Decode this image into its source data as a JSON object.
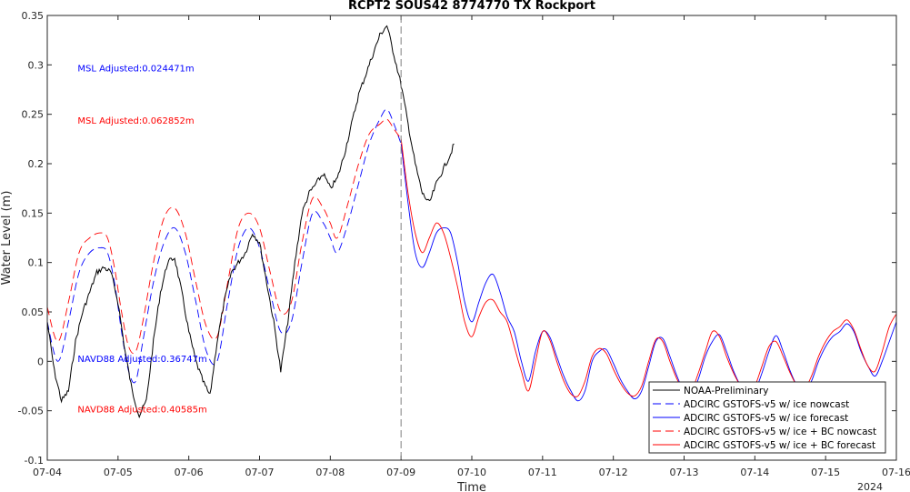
{
  "chart_data": {
    "type": "line",
    "title": "RCPT2 SOUS42 8774770 TX Rockport",
    "xlabel": "Time",
    "ylabel": "Water Level (m)",
    "year_label": "2024",
    "x_ticks": [
      "07-04",
      "07-05",
      "07-06",
      "07-07",
      "07-08",
      "07-09",
      "07-10",
      "07-11",
      "07-12",
      "07-13",
      "07-14",
      "07-15",
      "07-16"
    ],
    "y_ticks": [
      "-0.1",
      "-0.05",
      "0",
      "0.05",
      "0.1",
      "0.15",
      "0.2",
      "0.25",
      "0.3",
      "0.35"
    ],
    "xlim_days": [
      0,
      12
    ],
    "ylim": [
      -0.1,
      0.35
    ],
    "nowcast_forecast_divider_day": 5,
    "annotations": [
      {
        "text": "MSL Adjusted:0.024471m",
        "color": "#0000ff",
        "x_day": 0.3,
        "y": 0.297
      },
      {
        "text": "MSL Adjusted:0.062852m",
        "color": "#ff0000",
        "x_day": 0.3,
        "y": 0.244
      },
      {
        "text": "NAVD88 Adjusted:0.36747m",
        "color": "#0000ff",
        "x_day": 0.3,
        "y": 0.003
      },
      {
        "text": "NAVD88 Adjusted:0.40585m",
        "color": "#ff0000",
        "x_day": 0.3,
        "y": -0.048
      }
    ],
    "legend": {
      "placement": "bottom-right",
      "entries": [
        {
          "label": "NOAA-Preliminary",
          "color": "#000000",
          "dash": "solid"
        },
        {
          "label": "ADCIRC GSTOFS-v5 w/ ice nowcast",
          "color": "#0000ff",
          "dash": "dashed"
        },
        {
          "label": "ADCIRC GSTOFS-v5 w/ ice forecast",
          "color": "#0000ff",
          "dash": "solid"
        },
        {
          "label": "ADCIRC GSTOFS-v5 w/ ice + BC nowcast",
          "color": "#ff0000",
          "dash": "dashed"
        },
        {
          "label": "ADCIRC GSTOFS-v5 w/ ice + BC forecast",
          "color": "#ff0000",
          "dash": "solid"
        }
      ]
    },
    "series": [
      {
        "name": "NOAA-Preliminary",
        "color": "#000000",
        "dash": "solid",
        "noisy": true,
        "x": [
          0,
          0.1,
          0.2,
          0.3,
          0.4,
          0.5,
          0.6,
          0.7,
          0.8,
          0.9,
          1.0,
          1.1,
          1.2,
          1.3,
          1.4,
          1.5,
          1.6,
          1.7,
          1.8,
          1.9,
          2.0,
          2.1,
          2.2,
          2.3,
          2.4,
          2.5,
          2.6,
          2.7,
          2.8,
          2.9,
          3.0,
          3.1,
          3.2,
          3.3,
          3.4,
          3.5,
          3.6,
          3.7,
          3.8,
          3.9,
          4.0,
          4.1,
          4.2,
          4.3,
          4.4,
          4.5,
          4.6,
          4.7,
          4.8,
          4.9,
          5.0,
          5.1,
          5.2,
          5.3,
          5.4,
          5.5,
          5.6,
          5.7,
          5.75
        ],
        "y": [
          0.04,
          -0.01,
          -0.04,
          -0.03,
          0.02,
          0.05,
          0.07,
          0.09,
          0.095,
          0.09,
          0.06,
          0.01,
          -0.03,
          -0.055,
          -0.04,
          0.02,
          0.07,
          0.1,
          0.105,
          0.07,
          0.03,
          0.0,
          -0.02,
          -0.035,
          0.02,
          0.06,
          0.09,
          0.1,
          0.11,
          0.13,
          0.12,
          0.08,
          0.04,
          -0.01,
          0.04,
          0.1,
          0.15,
          0.17,
          0.18,
          0.19,
          0.175,
          0.185,
          0.21,
          0.24,
          0.27,
          0.29,
          0.31,
          0.33,
          0.34,
          0.31,
          0.28,
          0.24,
          0.2,
          0.17,
          0.16,
          0.18,
          0.195,
          0.21,
          0.22
        ]
      },
      {
        "name": "ADCIRC GSTOFS-v5 w/ ice nowcast",
        "color": "#0000ff",
        "dash": "dashed",
        "x": [
          0,
          0.15,
          0.3,
          0.45,
          0.6,
          0.75,
          0.85,
          0.95,
          1.05,
          1.15,
          1.25,
          1.35,
          1.5,
          1.65,
          1.8,
          1.95,
          2.1,
          2.25,
          2.4,
          2.55,
          2.7,
          2.85,
          3.0,
          3.15,
          3.3,
          3.45,
          3.6,
          3.75,
          3.9,
          4.0,
          4.1,
          4.25,
          4.4,
          4.55,
          4.7,
          4.8,
          4.9,
          5.0
        ],
        "y": [
          0.04,
          0.0,
          0.04,
          0.09,
          0.11,
          0.115,
          0.11,
          0.08,
          0.03,
          -0.01,
          -0.02,
          0.02,
          0.08,
          0.12,
          0.135,
          0.11,
          0.06,
          0.01,
          0.0,
          0.06,
          0.115,
          0.135,
          0.115,
          0.07,
          0.03,
          0.04,
          0.1,
          0.15,
          0.14,
          0.125,
          0.11,
          0.14,
          0.18,
          0.22,
          0.245,
          0.255,
          0.24,
          0.22
        ]
      },
      {
        "name": "ADCIRC GSTOFS-v5 w/ ice forecast",
        "color": "#0000ff",
        "dash": "solid",
        "x": [
          5.0,
          5.1,
          5.2,
          5.3,
          5.4,
          5.5,
          5.6,
          5.7,
          5.8,
          5.9,
          6.0,
          6.1,
          6.2,
          6.3,
          6.4,
          6.5,
          6.6,
          6.7,
          6.8,
          6.9,
          7.0,
          7.1,
          7.2,
          7.3,
          7.4,
          7.5,
          7.6,
          7.7,
          7.8,
          7.9,
          8.0,
          8.1,
          8.2,
          8.3,
          8.4,
          8.5,
          8.6,
          8.7,
          8.8,
          8.9,
          9.0,
          9.1,
          9.2,
          9.3,
          9.4,
          9.5,
          9.6,
          9.7,
          9.8,
          9.9,
          10.0,
          10.1,
          10.2,
          10.3,
          10.4,
          10.5,
          10.6,
          10.7,
          10.8,
          10.9,
          11.0,
          11.1,
          11.2,
          11.3,
          11.4,
          11.5,
          11.6,
          11.7,
          11.8,
          11.9,
          12.0
        ],
        "y": [
          0.22,
          0.16,
          0.11,
          0.095,
          0.11,
          0.13,
          0.135,
          0.13,
          0.1,
          0.06,
          0.04,
          0.06,
          0.08,
          0.088,
          0.07,
          0.045,
          0.03,
          0.0,
          -0.02,
          0.01,
          0.03,
          0.025,
          0.005,
          -0.015,
          -0.03,
          -0.04,
          -0.03,
          0.0,
          0.01,
          0.012,
          -0.002,
          -0.018,
          -0.03,
          -0.038,
          -0.03,
          -0.005,
          0.02,
          0.023,
          0.005,
          -0.015,
          -0.03,
          -0.033,
          -0.018,
          0.005,
          0.02,
          0.027,
          0.01,
          -0.01,
          -0.025,
          -0.035,
          -0.03,
          -0.012,
          0.01,
          0.026,
          0.01,
          -0.01,
          -0.025,
          -0.03,
          -0.02,
          0.0,
          0.015,
          0.025,
          0.03,
          0.038,
          0.03,
          0.01,
          -0.005,
          -0.015,
          0.0,
          0.02,
          0.04
        ]
      },
      {
        "name": "ADCIRC GSTOFS-v5 w/ ice + BC nowcast",
        "color": "#ff0000",
        "dash": "dashed",
        "x": [
          0,
          0.15,
          0.3,
          0.45,
          0.6,
          0.75,
          0.85,
          0.95,
          1.05,
          1.15,
          1.25,
          1.35,
          1.5,
          1.65,
          1.8,
          1.95,
          2.1,
          2.25,
          2.4,
          2.55,
          2.7,
          2.85,
          3.0,
          3.15,
          3.3,
          3.45,
          3.6,
          3.75,
          3.9,
          4.0,
          4.1,
          4.25,
          4.4,
          4.55,
          4.7,
          4.8,
          4.9,
          5.0
        ],
        "y": [
          0.055,
          0.02,
          0.06,
          0.11,
          0.125,
          0.13,
          0.125,
          0.095,
          0.05,
          0.015,
          0.01,
          0.04,
          0.1,
          0.145,
          0.155,
          0.13,
          0.08,
          0.035,
          0.025,
          0.08,
          0.135,
          0.15,
          0.135,
          0.09,
          0.05,
          0.06,
          0.12,
          0.165,
          0.155,
          0.14,
          0.125,
          0.16,
          0.2,
          0.23,
          0.24,
          0.245,
          0.235,
          0.225
        ]
      },
      {
        "name": "ADCIRC GSTOFS-v5 w/ ice + BC forecast",
        "color": "#ff0000",
        "dash": "solid",
        "x": [
          5.0,
          5.1,
          5.2,
          5.3,
          5.4,
          5.5,
          5.6,
          5.7,
          5.8,
          5.9,
          6.0,
          6.1,
          6.2,
          6.3,
          6.4,
          6.5,
          6.6,
          6.7,
          6.8,
          6.9,
          7.0,
          7.1,
          7.2,
          7.3,
          7.4,
          7.5,
          7.6,
          7.7,
          7.8,
          7.9,
          8.0,
          8.1,
          8.2,
          8.3,
          8.4,
          8.5,
          8.6,
          8.7,
          8.8,
          8.9,
          9.0,
          9.1,
          9.2,
          9.3,
          9.4,
          9.5,
          9.6,
          9.7,
          9.8,
          9.9,
          10.0,
          10.1,
          10.2,
          10.3,
          10.4,
          10.5,
          10.6,
          10.7,
          10.8,
          10.9,
          11.0,
          11.1,
          11.2,
          11.3,
          11.4,
          11.5,
          11.6,
          11.7,
          11.8,
          11.9,
          12.0
        ],
        "y": [
          0.225,
          0.17,
          0.13,
          0.11,
          0.125,
          0.14,
          0.13,
          0.105,
          0.075,
          0.04,
          0.025,
          0.045,
          0.06,
          0.062,
          0.05,
          0.04,
          0.015,
          -0.01,
          -0.03,
          0.0,
          0.03,
          0.022,
          0.0,
          -0.02,
          -0.033,
          -0.035,
          -0.02,
          0.005,
          0.013,
          0.008,
          -0.008,
          -0.022,
          -0.032,
          -0.035,
          -0.025,
          0.0,
          0.022,
          0.02,
          0.0,
          -0.018,
          -0.03,
          -0.03,
          -0.012,
          0.01,
          0.03,
          0.025,
          0.005,
          -0.012,
          -0.025,
          -0.032,
          -0.025,
          -0.005,
          0.015,
          0.02,
          0.005,
          -0.012,
          -0.025,
          -0.028,
          -0.015,
          0.005,
          0.02,
          0.03,
          0.035,
          0.042,
          0.032,
          0.012,
          -0.005,
          -0.01,
          0.01,
          0.035,
          0.048
        ]
      }
    ]
  }
}
